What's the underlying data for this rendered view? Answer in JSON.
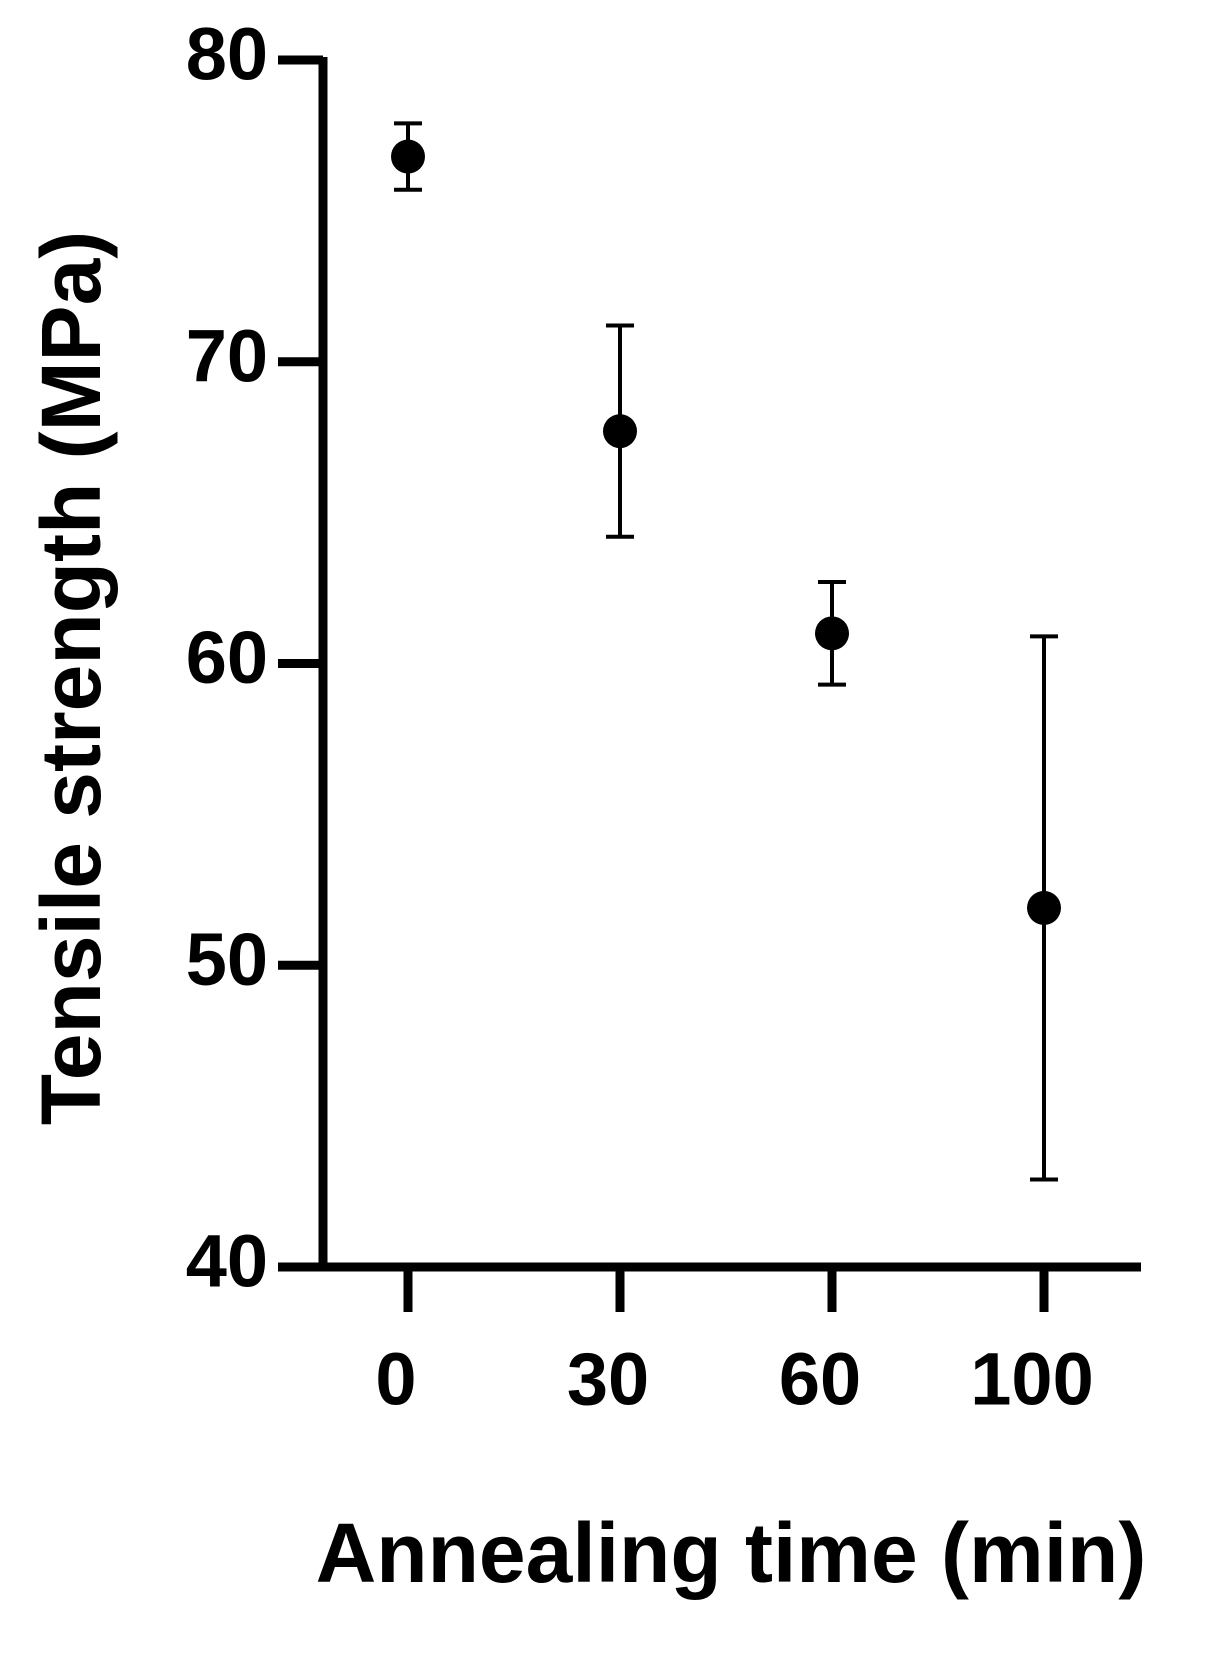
{
  "chart_data": {
    "type": "errorbar",
    "x_label": "Annealing time (min)",
    "y_label": "Tensile strength (MPa)",
    "categories": [
      "0",
      "30",
      "60",
      "100"
    ],
    "values": [
      76.8,
      67.7,
      61.0,
      51.9
    ],
    "errors": [
      1.1,
      3.5,
      1.7,
      9.0
    ],
    "color": "#000000",
    "ylim": [
      40,
      80
    ],
    "yticks": [
      40,
      50,
      60,
      70,
      80
    ],
    "grid": false
  }
}
